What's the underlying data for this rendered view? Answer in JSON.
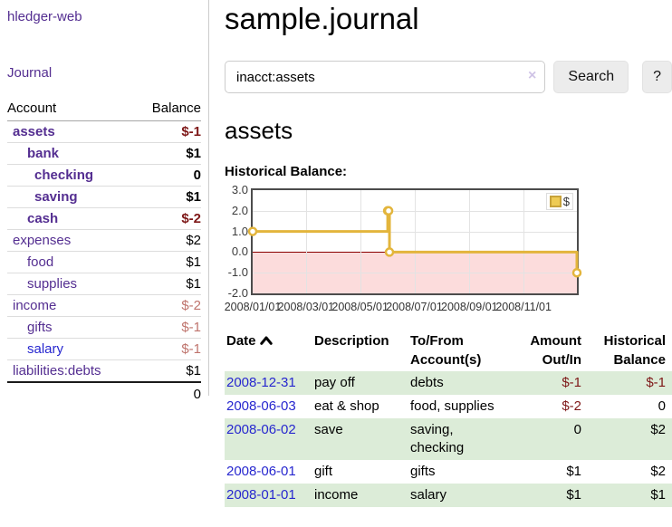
{
  "colors": {
    "link_purple": "#542e91",
    "link_blue": "#2727cf",
    "negative_red": "#7e1818",
    "faded_negative": "#bf746d",
    "row_green": "#dcecd8",
    "chart_line": "#e3b53c",
    "chart_negative_bg": "#fcdcdc",
    "zero_line": "#8b0000"
  },
  "sidebar": {
    "brand": "hledger-web",
    "journal_link": "Journal",
    "headers": {
      "account": "Account",
      "balance": "Balance"
    },
    "accounts": [
      {
        "name": "assets",
        "balance": "$-1"
      },
      {
        "name": "bank",
        "balance": "$1"
      },
      {
        "name": "checking",
        "balance": "0"
      },
      {
        "name": "saving",
        "balance": "$1"
      },
      {
        "name": "cash",
        "balance": "$-2"
      },
      {
        "name": "expenses",
        "balance": "$2"
      },
      {
        "name": "food",
        "balance": "$1"
      },
      {
        "name": "supplies",
        "balance": "$1"
      },
      {
        "name": "income",
        "balance": "$-2"
      },
      {
        "name": "gifts",
        "balance": "$-1"
      },
      {
        "name": "salary",
        "balance": "$-1"
      },
      {
        "name": "liabilities:debts",
        "balance": "$1"
      }
    ],
    "total": "0"
  },
  "main": {
    "title": "sample.journal",
    "search": {
      "query": "inacct:assets",
      "clear_icon": "×",
      "search_button": "Search",
      "help_button": "?"
    },
    "account_heading": "assets",
    "chart_heading": "Historical Balance:"
  },
  "chart_data": {
    "type": "line",
    "step": true,
    "title": "Historical Balance:",
    "series": [
      {
        "name": "$",
        "color": "#e3b53c",
        "points": [
          {
            "x": "2008-01-01",
            "y": 1
          },
          {
            "x": "2008-06-01",
            "y": 2
          },
          {
            "x": "2008-06-02",
            "y": 2
          },
          {
            "x": "2008-06-03",
            "y": 0
          },
          {
            "x": "2008-12-31",
            "y": -1
          }
        ]
      }
    ],
    "x_range": [
      "2008/01/01",
      "2008/12/31"
    ],
    "x_ticks": [
      "2008/01/01",
      "2008/03/01",
      "2008/05/01",
      "2008/07/01",
      "2008/09/01",
      "2008/11/01"
    ],
    "y_ticks": [
      "3.0",
      "2.0",
      "1.0",
      "0.0",
      "-1.0",
      "-2.0"
    ],
    "ylim": [
      -2,
      3
    ],
    "grid": true,
    "legend": {
      "label": "$",
      "position": "top-right"
    },
    "negative_region_color": "#fcdcdc",
    "zero_line_color": "#8b0000"
  },
  "register": {
    "headers": {
      "date": "Date",
      "description": "Description",
      "tofrom": [
        "To/From",
        "Account(s)"
      ],
      "amount": [
        "Amount",
        "Out/In"
      ],
      "balance": [
        "Historical",
        "Balance"
      ]
    },
    "rows": [
      {
        "date": "2008-12-31",
        "description": "pay off",
        "accounts": "debts",
        "amount": "$-1",
        "balance": "$-1"
      },
      {
        "date": "2008-06-03",
        "description": "eat & shop",
        "accounts": "food, supplies",
        "amount": "$-2",
        "balance": "0"
      },
      {
        "date": "2008-06-02",
        "description": "save",
        "accounts": "saving, checking",
        "amount": "0",
        "balance": "$2"
      },
      {
        "date": "2008-06-01",
        "description": "gift",
        "accounts": "gifts",
        "amount": "$1",
        "balance": "$2"
      },
      {
        "date": "2008-01-01",
        "description": "income",
        "accounts": "salary",
        "amount": "$1",
        "balance": "$1"
      }
    ]
  }
}
